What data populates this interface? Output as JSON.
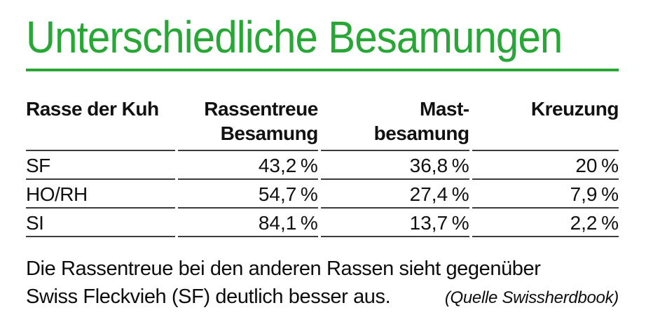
{
  "title": "Unterschiedliche Besamungen",
  "accent_color": "#28a737",
  "rule_color": "#3b3b3b",
  "table": {
    "headers": [
      {
        "line1": "Rasse der Kuh",
        "line2": ""
      },
      {
        "line1": "Rassentreue",
        "line2": "Besamung"
      },
      {
        "line1": "Mast-",
        "line2": "besamung"
      },
      {
        "line1": "Kreuzung",
        "line2": ""
      }
    ],
    "rows": [
      [
        "SF",
        "43,2 %",
        "36,8 %",
        "20 %"
      ],
      [
        "HO/RH",
        "54,7 %",
        "27,4 %",
        "7,9 %"
      ],
      [
        "SI",
        "84,1 %",
        "13,7 %",
        "2,2 %"
      ]
    ]
  },
  "caption": {
    "line1": "Die Rassentreue bei den anderen Rassen sieht gegenüber",
    "line2": "Swiss Fleckvieh (SF) deutlich besser aus.",
    "source": "(Quelle Swissherdbook)"
  },
  "chart_data": {
    "type": "table",
    "title": "Unterschiedliche Besamungen",
    "columns": [
      "Rasse der Kuh",
      "Rassentreue Besamung",
      "Mastbesamung",
      "Kreuzung"
    ],
    "rows": [
      {
        "rasse": "SF",
        "rassentreue_besamung_pct": 43.2,
        "mastbesamung_pct": 36.8,
        "kreuzung_pct": 20
      },
      {
        "rasse": "HO/RH",
        "rassentreue_besamung_pct": 54.7,
        "mastbesamung_pct": 27.4,
        "kreuzung_pct": 7.9
      },
      {
        "rasse": "SI",
        "rassentreue_besamung_pct": 84.1,
        "mastbesamung_pct": 13.7,
        "kreuzung_pct": 2.2
      }
    ],
    "note": "Die Rassentreue bei den anderen Rassen sieht gegenüber Swiss Fleckvieh (SF) deutlich besser aus.",
    "source": "(Quelle Swissherdbook)"
  }
}
